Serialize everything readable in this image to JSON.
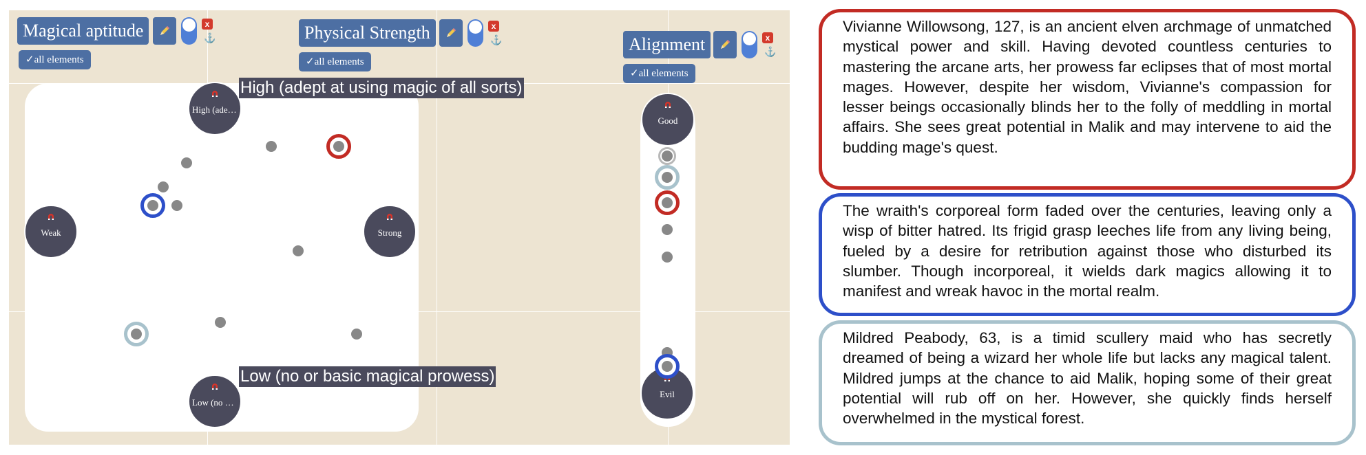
{
  "colors": {
    "board_bg": "#ede4d2",
    "button_blue": "#4d6fa3",
    "node_dark": "#4a4a5c",
    "marker_red": "#c22b24",
    "marker_blue": "#2d4fc9",
    "marker_teal": "#a8c2cc",
    "point_grey": "#888888"
  },
  "icons": {
    "edit": "pencil-icon",
    "close": "close-icon",
    "hook": "anchor-hook-icon",
    "magnet": "magnet-icon",
    "check": "check-icon"
  },
  "axes": {
    "magical": {
      "title": "Magical aptitude",
      "all_elements": "✓all elements",
      "close": "x",
      "high_short": "High (adep...",
      "low_short": "Low (no or...",
      "high_full": "High (adept at using magic of all sorts)",
      "low_full": "Low (no or basic magical prowess)"
    },
    "physical": {
      "title": "Physical Strength",
      "all_elements": "✓all elements",
      "close": "x",
      "weak": "Weak",
      "strong": "Strong"
    },
    "alignment": {
      "title": "Alignment",
      "all_elements": "✓all elements",
      "close": "x",
      "good": "Good",
      "evil": "Evil"
    }
  },
  "cards": [
    {
      "color": "red",
      "text": "Vivianne Willowsong, 127, is an ancient elven archmage of unmatched mystical power and skill. Having devoted countless centuries to mastering the arcane arts, her prowess far eclipses that of most mortal mages. However, despite her wisdom, Vivianne's compassion for lesser beings occasionally blinds her to the folly of meddling in mortal affairs. She sees great potential in Malik and may intervene to aid the budding mage's quest."
    },
    {
      "color": "blue",
      "text": " The wraith's corporeal form faded over the centuries, leaving only a wisp of bitter hatred. Its frigid grasp leeches life from any living being, fueled by a desire for retribution against those who disturbed its slumber. Though incorporeal, it wields dark magics allowing it to manifest and wreak havoc in the mortal realm."
    },
    {
      "color": "teal",
      "text": "Mildred Peabody, 63, is a timid scullery maid who has secretly dreamed of being a wizard her whole life but lacks any magical talent. Mildred jumps at the chance to aid Malik, hoping some of their great potential will rub off on her. However, she quickly finds herself overwhelmed in the mystical forest."
    }
  ]
}
